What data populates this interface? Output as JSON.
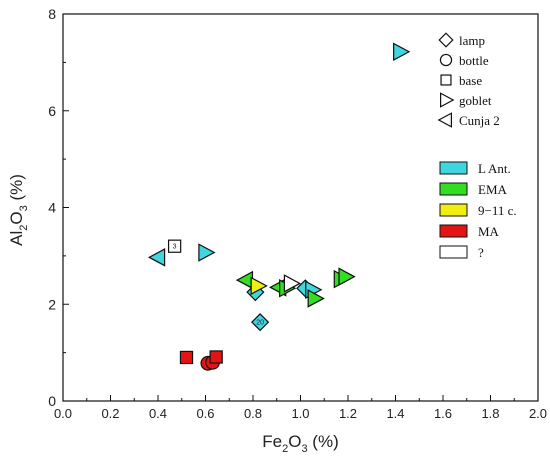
{
  "chart_data": {
    "type": "scatter",
    "xlim": [
      0.0,
      2.0
    ],
    "ylim": [
      0,
      8
    ],
    "x_ticks": [
      "0.0",
      "0.2",
      "0.4",
      "0.6",
      "0.8",
      "1.0",
      "1.2",
      "1.4",
      "1.6",
      "1.8",
      "2.0"
    ],
    "y_ticks": [
      "0",
      "2",
      "4",
      "6",
      "8"
    ],
    "xlabel": {
      "main": "Fe",
      "sub": "2",
      "rest": "O",
      "sub2": "3",
      "unit": " (%)"
    },
    "ylabel": {
      "main": "Al",
      "sub": "2",
      "rest": "O",
      "sub2": "3",
      "unit": " (%)"
    },
    "shape_legend": [
      {
        "shape": "diamond",
        "label": "lamp"
      },
      {
        "shape": "circle",
        "label": "bottle"
      },
      {
        "shape": "square",
        "label": "base"
      },
      {
        "shape": "triangle-right",
        "label": "goblet"
      },
      {
        "shape": "triangle-left",
        "label": "Cunja 2"
      }
    ],
    "color_legend": [
      {
        "key": "lant",
        "label": "L Ant.",
        "color": "#3fd6e0"
      },
      {
        "key": "ema",
        "label": "EMA",
        "color": "#33dd22"
      },
      {
        "key": "c911",
        "label": "9−11 c.",
        "color": "#f0ef11"
      },
      {
        "key": "ma",
        "label": "MA",
        "color": "#e41414"
      },
      {
        "key": "unk",
        "label": "?",
        "color": "#ffffff"
      }
    ],
    "points": [
      {
        "x": 1.42,
        "y": 7.22,
        "shape": "triangle-right",
        "group": "lant",
        "label": ""
      },
      {
        "x": 0.4,
        "y": 2.97,
        "shape": "triangle-left",
        "group": "lant",
        "label": ""
      },
      {
        "x": 0.47,
        "y": 3.2,
        "shape": "square",
        "group": "unk",
        "label": "3"
      },
      {
        "x": 0.6,
        "y": 3.07,
        "shape": "triangle-right",
        "group": "lant",
        "label": ""
      },
      {
        "x": 0.77,
        "y": 2.5,
        "shape": "triangle-left",
        "group": "ema",
        "label": ""
      },
      {
        "x": 0.81,
        "y": 2.25,
        "shape": "diamond",
        "group": "lant",
        "label": ""
      },
      {
        "x": 0.82,
        "y": 2.38,
        "shape": "triangle-right",
        "group": "c911",
        "label": ""
      },
      {
        "x": 0.83,
        "y": 1.63,
        "shape": "diamond",
        "group": "lant",
        "label": "20"
      },
      {
        "x": 0.91,
        "y": 2.35,
        "shape": "triangle-left",
        "group": "ema",
        "label": ""
      },
      {
        "x": 0.94,
        "y": 2.33,
        "shape": "triangle-right",
        "group": "ema",
        "label": ""
      },
      {
        "x": 0.96,
        "y": 2.43,
        "shape": "triangle-right",
        "group": "unk",
        "label": ""
      },
      {
        "x": 1.02,
        "y": 2.33,
        "shape": "diamond",
        "group": "lant",
        "label": ""
      },
      {
        "x": 1.05,
        "y": 2.3,
        "shape": "triangle-right",
        "group": "lant",
        "label": ""
      },
      {
        "x": 1.06,
        "y": 2.12,
        "shape": "triangle-right",
        "group": "ema",
        "label": ""
      },
      {
        "x": 1.17,
        "y": 2.52,
        "shape": "triangle-right",
        "group": "ema",
        "label": ""
      },
      {
        "x": 1.19,
        "y": 2.57,
        "shape": "triangle-right",
        "group": "ema",
        "label": ""
      },
      {
        "x": 0.52,
        "y": 0.9,
        "shape": "square",
        "group": "ma",
        "label": ""
      },
      {
        "x": 0.61,
        "y": 0.78,
        "shape": "circle",
        "group": "ma",
        "label": ""
      },
      {
        "x": 0.63,
        "y": 0.8,
        "shape": "circle",
        "group": "ma",
        "label": ""
      },
      {
        "x": 0.645,
        "y": 0.91,
        "shape": "square",
        "group": "ma",
        "label": ""
      }
    ]
  }
}
